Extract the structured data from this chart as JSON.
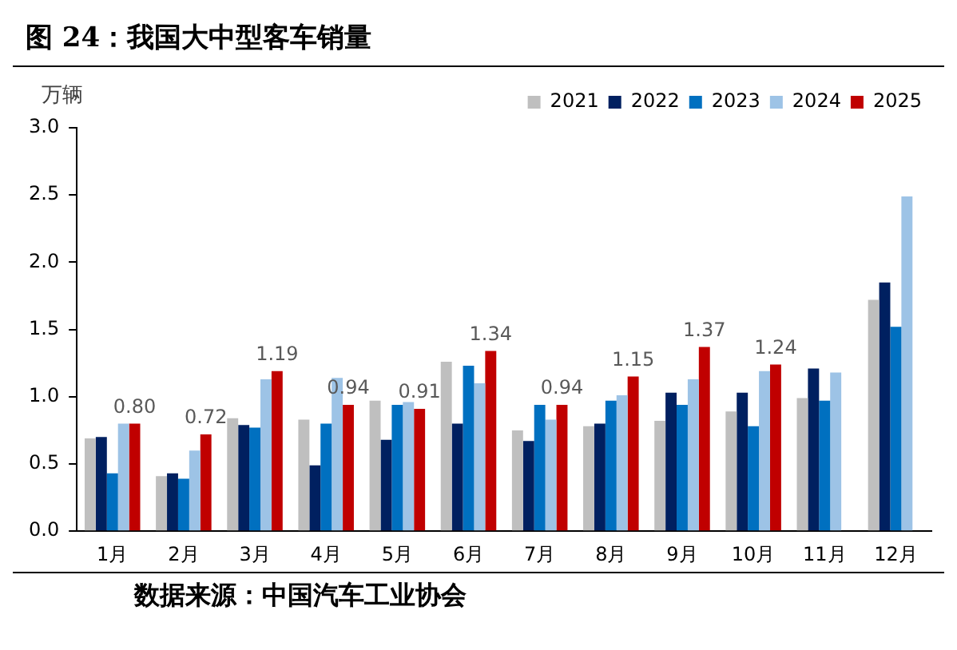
{
  "chart_data": {
    "type": "bar",
    "title": "图 24：我国大中型客车销量",
    "ylabel": "万辆",
    "annotations": [
      "数据来源：中国汽车工业协会"
    ],
    "categories": [
      "1月",
      "2月",
      "3月",
      "4月",
      "5月",
      "6月",
      "7月",
      "8月",
      "9月",
      "10月",
      "11月",
      "12月"
    ],
    "ylim": [
      0,
      3
    ],
    "yticks": [
      {
        "value": 0,
        "label": "0.0"
      },
      {
        "value": 0.5,
        "label": "0.5"
      },
      {
        "value": 1,
        "label": "1.0"
      },
      {
        "value": 1.5,
        "label": "1.5"
      },
      {
        "value": 2,
        "label": "2.0"
      },
      {
        "value": 2.5,
        "label": "2.5"
      },
      {
        "value": 3,
        "label": "3.0"
      }
    ],
    "grid": false,
    "legend": "top right",
    "series": [
      {
        "name": "2021",
        "color": "#bfbfbf",
        "values": [
          0.69,
          0.41,
          0.84,
          0.83,
          0.97,
          1.26,
          0.75,
          0.78,
          0.82,
          0.89,
          0.99,
          1.72
        ]
      },
      {
        "name": "2022",
        "color": "#002060",
        "values": [
          0.7,
          0.43,
          0.79,
          0.49,
          0.68,
          0.8,
          0.67,
          0.8,
          1.03,
          1.03,
          1.21,
          1.85
        ]
      },
      {
        "name": "2023",
        "color": "#0070c0",
        "values": [
          0.43,
          0.39,
          0.77,
          0.8,
          0.94,
          1.23,
          0.94,
          0.97,
          0.94,
          0.78,
          0.97,
          1.52
        ]
      },
      {
        "name": "2024",
        "color": "#9dc3e6",
        "values": [
          0.8,
          0.6,
          1.13,
          1.14,
          0.96,
          1.1,
          0.83,
          1.01,
          1.13,
          1.19,
          1.18,
          2.49
        ]
      },
      {
        "name": "2025",
        "color": "#c00000",
        "values": [
          0.8,
          0.72,
          1.19,
          0.94,
          0.91,
          1.34,
          0.94,
          1.15,
          1.37,
          1.24,
          null,
          null
        ],
        "value_labels": [
          "0.80",
          "0.72",
          "1.19",
          "0.94",
          "0.91",
          "1.34",
          "0.94",
          "1.15",
          "1.37",
          "1.24",
          null,
          null
        ]
      }
    ]
  }
}
